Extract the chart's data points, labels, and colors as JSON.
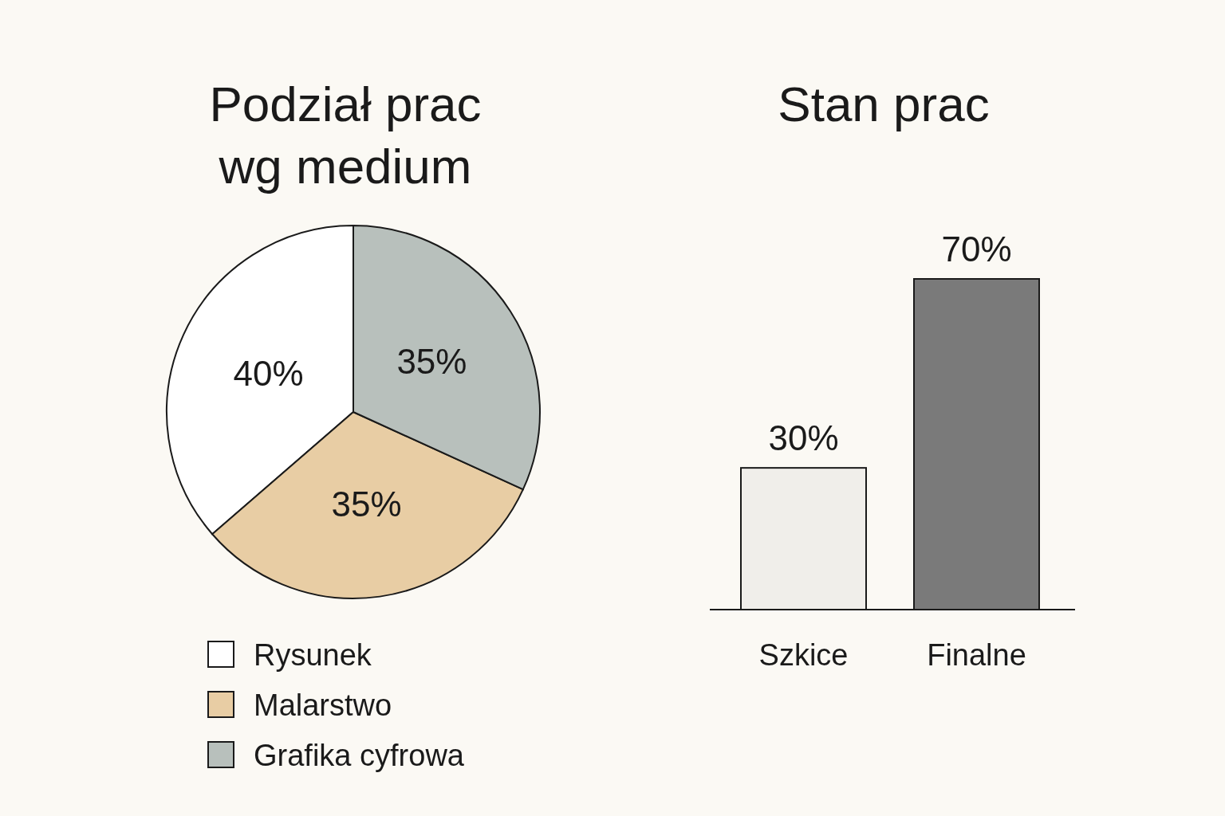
{
  "chart_data": [
    {
      "type": "pie",
      "title": "Podział prac\nwg medium",
      "categories": [
        "Rysunek",
        "Malarstwo",
        "Grafika cyfrowa"
      ],
      "values": [
        40,
        35,
        35
      ],
      "colors": [
        "#ffffff",
        "#e8cda4",
        "#b8c0bc"
      ],
      "value_labels": [
        "40%",
        "35%",
        "35%"
      ],
      "legend": "bottom"
    },
    {
      "type": "bar",
      "title": "Stan prac",
      "categories": [
        "Szkice",
        "Finalne"
      ],
      "values": [
        30,
        70
      ],
      "colors": [
        "#f0eeea",
        "#7a7a7a"
      ],
      "value_labels": [
        "30%",
        "70%"
      ]
    }
  ]
}
